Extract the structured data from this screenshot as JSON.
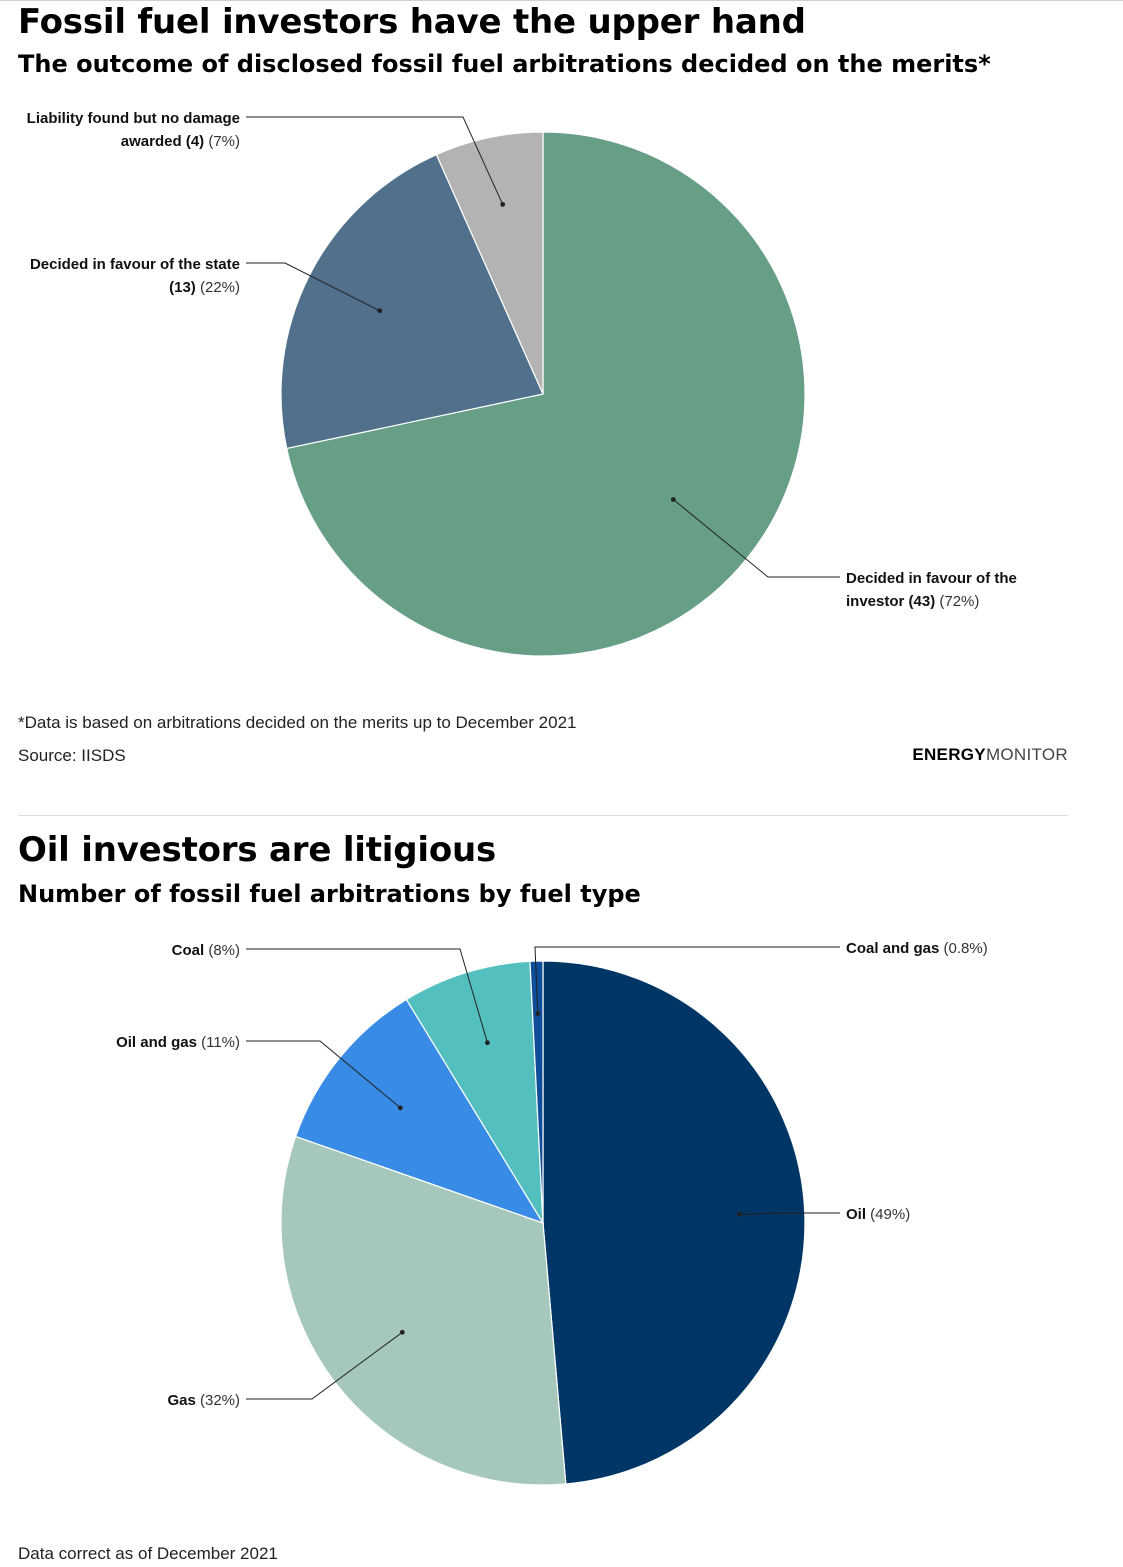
{
  "chart1": {
    "title": "Fossil fuel investors have the upper hand",
    "subtitle": "The outcome of disclosed fossil fuel arbitrations decided on the merits*",
    "footnote": "*Data is based on arbitrations decided on the merits up to December 2021",
    "source": "Source: IISDS",
    "brand_bold": "ENERGY",
    "brand_light": "MONITOR"
  },
  "chart2": {
    "title": "Oil investors are litigious",
    "subtitle": "Number of fossil fuel arbitrations by fuel type",
    "footnote": "Data correct as of December 2021"
  },
  "colors": {
    "investor": "#669e86",
    "state": "#51708c",
    "liability": "#b3b3b3",
    "oil": "#003666",
    "coal_gas": "#0d4d99",
    "coal": "#53bfbf",
    "oil_gas": "#388ce6",
    "gas": "#a6c7bb"
  },
  "chart_data": [
    {
      "type": "pie",
      "title": "Fossil fuel investors have the upper hand",
      "subtitle": "The outcome of disclosed fossil fuel arbitrations decided on the merits*",
      "slices": [
        {
          "key": "investor",
          "name_lines": [
            "Decided in favour of the",
            "investor (43)"
          ],
          "value": 43,
          "pct": "(72%)",
          "color_key": "investor"
        },
        {
          "key": "state",
          "name_lines": [
            "Decided in favour of the state",
            "(13)"
          ],
          "value": 13,
          "pct": "(22%)",
          "color_key": "state"
        },
        {
          "key": "liability",
          "name_lines": [
            "Liability found but no damage",
            "awarded (4)"
          ],
          "value": 4,
          "pct": "(7%)",
          "color_key": "liability"
        }
      ]
    },
    {
      "type": "pie",
      "title": "Oil investors are litigious",
      "subtitle": "Number of fossil fuel arbitrations by fuel type",
      "slices": [
        {
          "key": "oil",
          "name_lines": [
            "Oil"
          ],
          "value": 49,
          "pct": "(49%)",
          "color_key": "oil"
        },
        {
          "key": "gas",
          "name_lines": [
            "Gas"
          ],
          "value": 32,
          "pct": "(32%)",
          "color_key": "gas"
        },
        {
          "key": "oil_gas",
          "name_lines": [
            "Oil and gas"
          ],
          "value": 11,
          "pct": "(11%)",
          "color_key": "oil_gas"
        },
        {
          "key": "coal",
          "name_lines": [
            "Coal"
          ],
          "value": 8,
          "pct": "(8%)",
          "color_key": "coal"
        },
        {
          "key": "coal_gas",
          "name_lines": [
            "Coal and gas"
          ],
          "value": 0.8,
          "pct": "(0.8%)",
          "color_key": "coal_gas"
        }
      ]
    }
  ]
}
